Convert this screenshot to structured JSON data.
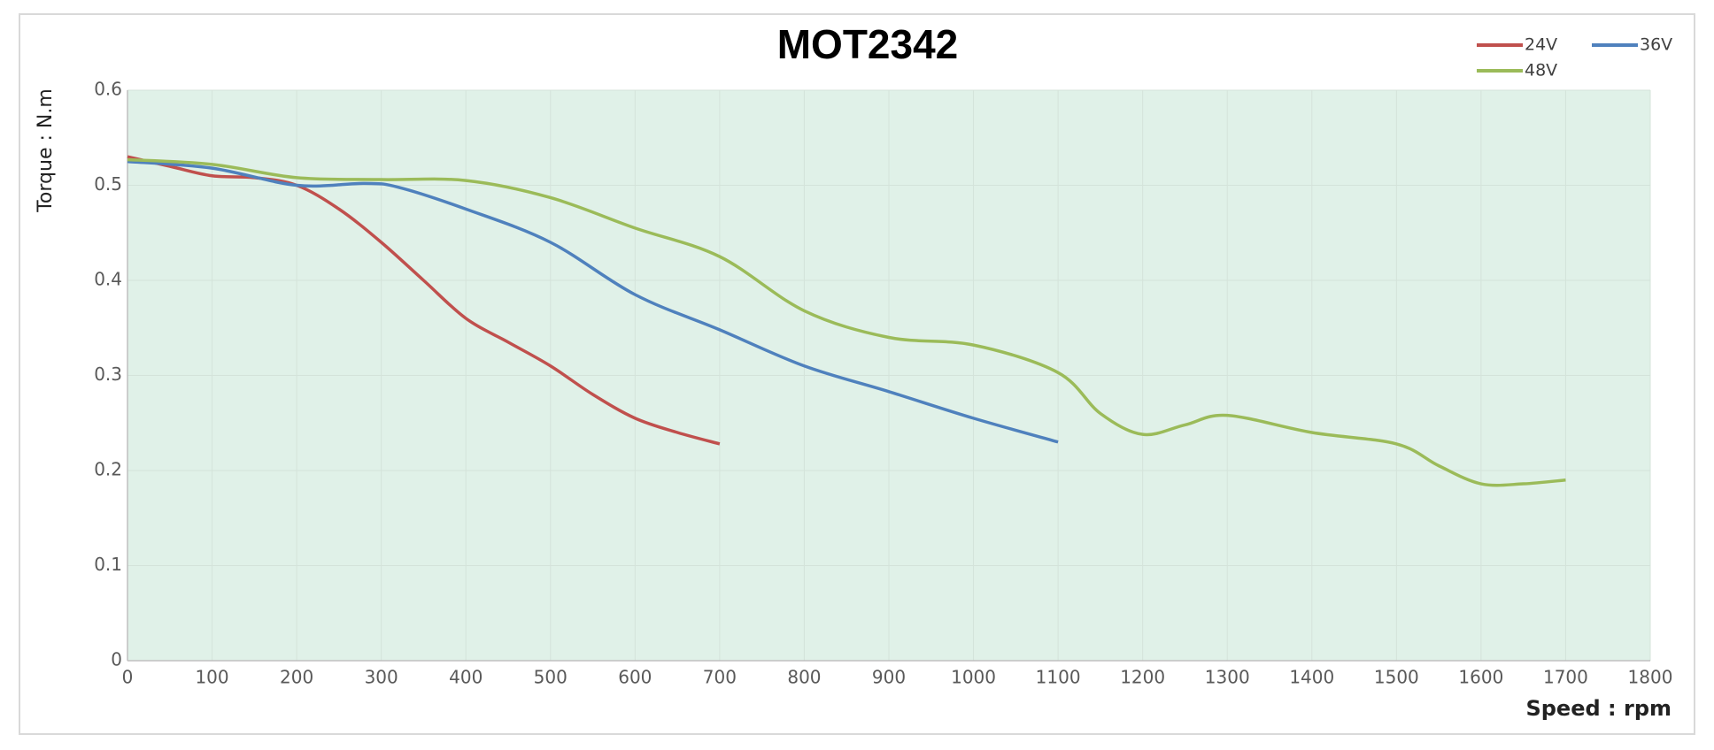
{
  "chart_data": {
    "type": "line",
    "title": "MOT2342",
    "x_label": "Speed : rpm",
    "y_label": "Torque : N.m",
    "xlim": [
      0,
      1800
    ],
    "xticks": [
      0,
      100,
      200,
      300,
      400,
      500,
      600,
      700,
      800,
      900,
      1000,
      1100,
      1200,
      1300,
      1400,
      1500,
      1600,
      1700,
      1800
    ],
    "ylim": [
      0,
      0.6
    ],
    "yticks": [
      0,
      0.1,
      0.2,
      0.3,
      0.4,
      0.5,
      0.6
    ],
    "grid": true,
    "legend": "top-right",
    "series": [
      {
        "name": "24V",
        "color": "#c0504d",
        "x": [
          0,
          50,
          100,
          150,
          200,
          250,
          300,
          350,
          400,
          450,
          500,
          550,
          600,
          650,
          700
        ],
        "values": [
          0.53,
          0.52,
          0.51,
          0.508,
          0.5,
          0.475,
          0.44,
          0.4,
          0.36,
          0.335,
          0.31,
          0.28,
          0.255,
          0.24,
          0.228
        ]
      },
      {
        "name": "36V",
        "color": "#4f81bd",
        "x": [
          0,
          100,
          200,
          280,
          320,
          400,
          500,
          600,
          700,
          800,
          900,
          1000,
          1100
        ],
        "values": [
          0.525,
          0.518,
          0.5,
          0.502,
          0.498,
          0.475,
          0.44,
          0.385,
          0.348,
          0.31,
          0.283,
          0.255,
          0.23
        ]
      },
      {
        "name": "48V",
        "color": "#9bbb59",
        "x": [
          0,
          100,
          200,
          300,
          400,
          500,
          600,
          700,
          800,
          900,
          1000,
          1100,
          1150,
          1200,
          1250,
          1300,
          1400,
          1500,
          1550,
          1600,
          1650,
          1700
        ],
        "values": [
          0.527,
          0.522,
          0.508,
          0.506,
          0.505,
          0.487,
          0.455,
          0.425,
          0.368,
          0.34,
          0.332,
          0.303,
          0.26,
          0.238,
          0.248,
          0.258,
          0.24,
          0.228,
          0.205,
          0.186,
          0.186,
          0.19
        ]
      }
    ]
  }
}
